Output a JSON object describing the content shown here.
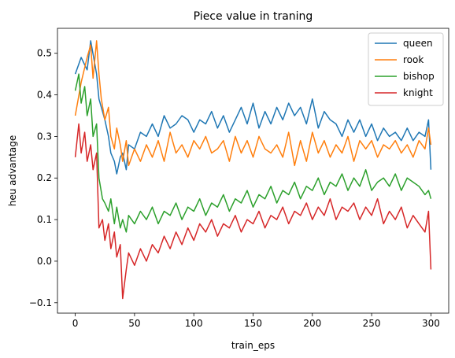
{
  "chart_data": {
    "type": "line",
    "title": "Piece value in traning",
    "xlabel": "train_eps",
    "ylabel": "heu advantage",
    "xlim": [
      -15,
      315
    ],
    "ylim": [
      -0.125,
      0.56
    ],
    "xticks": [
      0,
      50,
      100,
      150,
      200,
      250,
      300
    ],
    "yticks": [
      -0.1,
      0.0,
      0.1,
      0.2,
      0.3,
      0.4,
      0.5
    ],
    "ytick_labels": [
      "−0.1",
      "0.0",
      "0.1",
      "0.2",
      "0.3",
      "0.4",
      "0.5"
    ],
    "grid": false,
    "legend_position": "top-right",
    "series": [
      {
        "name": "queen",
        "color": "#1f77b4",
        "x": [
          0,
          5,
          10,
          13,
          18,
          20,
          25,
          28,
          30,
          33,
          35,
          38,
          40,
          43,
          45,
          50,
          55,
          60,
          65,
          70,
          75,
          80,
          85,
          90,
          95,
          100,
          105,
          110,
          115,
          120,
          125,
          130,
          135,
          140,
          145,
          150,
          155,
          160,
          165,
          170,
          175,
          180,
          185,
          190,
          195,
          200,
          205,
          210,
          215,
          220,
          225,
          230,
          235,
          240,
          245,
          250,
          255,
          260,
          265,
          270,
          275,
          280,
          285,
          290,
          295,
          298,
          300
        ],
        "values": [
          0.45,
          0.49,
          0.46,
          0.53,
          0.45,
          0.39,
          0.34,
          0.3,
          0.26,
          0.24,
          0.21,
          0.25,
          0.26,
          0.22,
          0.28,
          0.27,
          0.31,
          0.3,
          0.33,
          0.3,
          0.35,
          0.32,
          0.33,
          0.35,
          0.34,
          0.31,
          0.34,
          0.33,
          0.36,
          0.32,
          0.35,
          0.31,
          0.34,
          0.37,
          0.33,
          0.38,
          0.32,
          0.36,
          0.33,
          0.37,
          0.34,
          0.38,
          0.35,
          0.37,
          0.33,
          0.39,
          0.32,
          0.36,
          0.34,
          0.33,
          0.3,
          0.34,
          0.31,
          0.34,
          0.3,
          0.33,
          0.29,
          0.32,
          0.3,
          0.31,
          0.29,
          0.32,
          0.29,
          0.31,
          0.3,
          0.34,
          0.22
        ]
      },
      {
        "name": "rook",
        "color": "#ff7f0e",
        "x": [
          0,
          5,
          10,
          13,
          15,
          18,
          20,
          22,
          25,
          28,
          30,
          33,
          35,
          38,
          40,
          43,
          45,
          50,
          55,
          60,
          65,
          70,
          75,
          80,
          85,
          90,
          95,
          100,
          105,
          110,
          115,
          120,
          125,
          130,
          135,
          140,
          145,
          150,
          155,
          160,
          165,
          170,
          175,
          180,
          185,
          190,
          195,
          200,
          205,
          210,
          215,
          220,
          225,
          230,
          235,
          240,
          245,
          250,
          255,
          260,
          265,
          270,
          275,
          280,
          285,
          290,
          295,
          298,
          300
        ],
        "values": [
          0.35,
          0.43,
          0.49,
          0.52,
          0.44,
          0.53,
          0.45,
          0.39,
          0.34,
          0.37,
          0.3,
          0.27,
          0.32,
          0.28,
          0.24,
          0.29,
          0.23,
          0.27,
          0.24,
          0.28,
          0.25,
          0.29,
          0.24,
          0.31,
          0.26,
          0.28,
          0.25,
          0.29,
          0.27,
          0.3,
          0.26,
          0.27,
          0.29,
          0.24,
          0.3,
          0.26,
          0.29,
          0.25,
          0.3,
          0.27,
          0.26,
          0.28,
          0.25,
          0.31,
          0.23,
          0.29,
          0.24,
          0.31,
          0.26,
          0.29,
          0.25,
          0.28,
          0.26,
          0.3,
          0.24,
          0.29,
          0.27,
          0.29,
          0.25,
          0.28,
          0.27,
          0.29,
          0.26,
          0.28,
          0.25,
          0.29,
          0.27,
          0.32,
          0.28
        ]
      },
      {
        "name": "bishop",
        "color": "#2ca02c",
        "x": [
          0,
          3,
          5,
          8,
          10,
          13,
          15,
          18,
          20,
          23,
          25,
          28,
          30,
          33,
          35,
          38,
          40,
          43,
          45,
          50,
          55,
          60,
          65,
          70,
          75,
          80,
          85,
          90,
          95,
          100,
          105,
          110,
          115,
          120,
          125,
          130,
          135,
          140,
          145,
          150,
          155,
          160,
          165,
          170,
          175,
          180,
          185,
          190,
          195,
          200,
          205,
          210,
          215,
          220,
          225,
          230,
          235,
          240,
          245,
          250,
          255,
          260,
          265,
          270,
          275,
          280,
          285,
          290,
          295,
          298,
          300
        ],
        "values": [
          0.41,
          0.45,
          0.38,
          0.42,
          0.35,
          0.39,
          0.3,
          0.33,
          0.2,
          0.15,
          0.14,
          0.12,
          0.15,
          0.09,
          0.13,
          0.08,
          0.1,
          0.07,
          0.11,
          0.09,
          0.12,
          0.1,
          0.13,
          0.09,
          0.12,
          0.11,
          0.14,
          0.1,
          0.13,
          0.12,
          0.15,
          0.11,
          0.14,
          0.13,
          0.16,
          0.12,
          0.15,
          0.14,
          0.17,
          0.13,
          0.16,
          0.15,
          0.18,
          0.14,
          0.17,
          0.16,
          0.19,
          0.15,
          0.18,
          0.17,
          0.2,
          0.16,
          0.19,
          0.18,
          0.21,
          0.17,
          0.2,
          0.18,
          0.22,
          0.17,
          0.19,
          0.2,
          0.18,
          0.21,
          0.17,
          0.2,
          0.19,
          0.18,
          0.16,
          0.17,
          0.15
        ]
      },
      {
        "name": "knight",
        "color": "#d62728",
        "x": [
          0,
          3,
          5,
          8,
          10,
          13,
          15,
          18,
          20,
          23,
          25,
          28,
          30,
          33,
          35,
          38,
          40,
          43,
          45,
          50,
          55,
          60,
          65,
          70,
          75,
          80,
          85,
          90,
          95,
          100,
          105,
          110,
          115,
          120,
          125,
          130,
          135,
          140,
          145,
          150,
          155,
          160,
          165,
          170,
          175,
          180,
          185,
          190,
          195,
          200,
          205,
          210,
          215,
          220,
          225,
          230,
          235,
          240,
          245,
          250,
          255,
          260,
          265,
          270,
          275,
          280,
          285,
          290,
          295,
          298,
          300
        ],
        "values": [
          0.25,
          0.33,
          0.26,
          0.31,
          0.24,
          0.28,
          0.22,
          0.26,
          0.08,
          0.1,
          0.05,
          0.09,
          0.03,
          0.07,
          0.01,
          0.04,
          -0.09,
          -0.02,
          0.02,
          -0.01,
          0.03,
          0.0,
          0.04,
          0.02,
          0.06,
          0.03,
          0.07,
          0.04,
          0.08,
          0.05,
          0.09,
          0.07,
          0.1,
          0.06,
          0.09,
          0.08,
          0.11,
          0.07,
          0.1,
          0.09,
          0.12,
          0.08,
          0.11,
          0.1,
          0.13,
          0.09,
          0.12,
          0.11,
          0.14,
          0.1,
          0.13,
          0.11,
          0.15,
          0.1,
          0.13,
          0.12,
          0.14,
          0.1,
          0.13,
          0.11,
          0.15,
          0.09,
          0.12,
          0.1,
          0.13,
          0.08,
          0.11,
          0.09,
          0.07,
          0.12,
          -0.02
        ]
      }
    ]
  }
}
